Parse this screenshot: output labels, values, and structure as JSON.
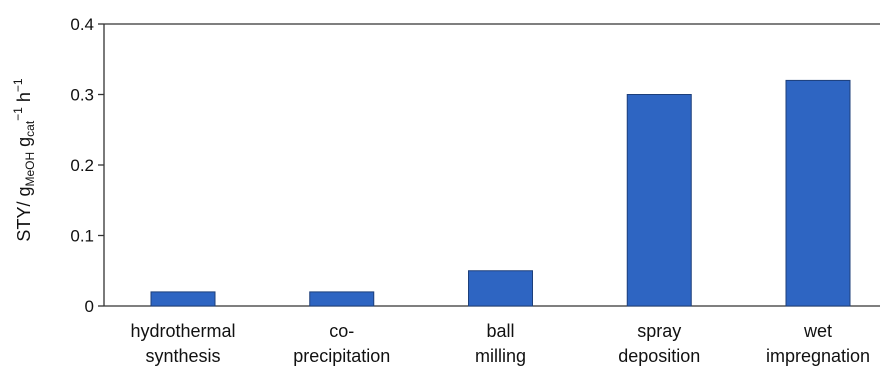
{
  "chart_data": {
    "type": "bar",
    "categories": [
      [
        "hydrothermal",
        "synthesis"
      ],
      [
        "co-",
        "precipitation"
      ],
      [
        "ball",
        "milling"
      ],
      [
        "spray",
        "deposition"
      ],
      [
        "wet",
        "impregnation"
      ]
    ],
    "values": [
      0.02,
      0.02,
      0.05,
      0.3,
      0.32
    ],
    "ylim": [
      0,
      0.4
    ],
    "yticks": [
      "0",
      "0.1",
      "0.2",
      "0.3",
      "0.4"
    ],
    "ylabel": {
      "main": "STY/ g",
      "sub1": "MeOH",
      "mid": " g",
      "sub2": "cat",
      "sup1": "−1",
      "mid2": " h",
      "sup2": "−1"
    },
    "bar_color": "#2e65c2",
    "grid": false
  }
}
